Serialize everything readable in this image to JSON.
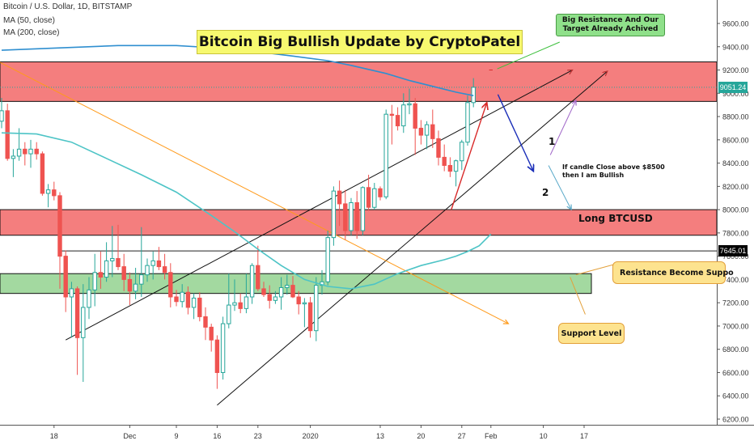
{
  "legend": {
    "symbol_line": "Bitcoin / U.S. Dollar, 1D, BITSTAMP",
    "ma50_line": "MA (50, close)",
    "ma200_line": "MA (200, close)"
  },
  "annotations": {
    "banner_title": "Bitcoin Big Bullish Update by CryptoPatel",
    "resistance_callout": "Big Resistance And Our Target Already Achived",
    "long_label": "Long BTCUSD",
    "resistance_support_callout": "Resistance Become Suppo",
    "support_callout": "Support Level",
    "note_line1": "If candle Close above $8500",
    "note_line2": "then I am Bullish",
    "marker_1": "1",
    "marker_2": "2"
  },
  "price_tags": [
    {
      "label": "9051.24",
      "value": 9051.24,
      "color": "#26a69a"
    },
    {
      "label": "7645.01",
      "value": 7645.01,
      "color": "#000000"
    }
  ],
  "colors": {
    "bull": "#26a69a",
    "bear": "#ef5350",
    "ma50": "#4dc4c6",
    "ma200": "#2f8fd0",
    "resistance_zone": "#f47e7e",
    "support_zone": "#a3d9a0",
    "trend_orange": "#ff9a1a",
    "arrow_red": "#d82a2a",
    "arrow_blue": "#1a2eb8"
  },
  "chart_data": {
    "type": "candlestick",
    "title": "",
    "ylim": [
      6200,
      9700
    ],
    "y_ticks": [
      6200,
      6400,
      6600,
      6800,
      7000,
      7200,
      7400,
      7600,
      7800,
      8000,
      8200,
      8400,
      8600,
      8800,
      9000,
      9200,
      9400,
      9600
    ],
    "y_tick_labels": [
      "6200.00",
      "6400.00",
      "6600.00",
      "6800.00",
      "7000.00",
      "7200.00",
      "7400.00",
      "7600.00",
      "7800.00",
      "8000.00",
      "8200.00",
      "8400.00",
      "8600.00",
      "8800.00",
      "9000.00",
      "9200.00",
      "9400.00",
      "9600.00"
    ],
    "x_ticks": [
      {
        "label": "18",
        "bar": 9
      },
      {
        "label": "Dec",
        "bar": 22
      },
      {
        "label": "9",
        "bar": 30
      },
      {
        "label": "16",
        "bar": 37
      },
      {
        "label": "23",
        "bar": 44
      },
      {
        "label": "2020",
        "bar": 53
      },
      {
        "label": "13",
        "bar": 65
      },
      {
        "label": "20",
        "bar": 72
      },
      {
        "label": "27",
        "bar": 79
      },
      {
        "label": "Feb",
        "bar": 84
      },
      {
        "label": "10",
        "bar": 93
      },
      {
        "label": "17",
        "bar": 100
      }
    ],
    "candles": [
      {
        "o": 8760,
        "h": 8960,
        "l": 8700,
        "c": 8850
      },
      {
        "o": 8850,
        "h": 8910,
        "l": 8420,
        "c": 8440
      },
      {
        "o": 8440,
        "h": 8520,
        "l": 8280,
        "c": 8460
      },
      {
        "o": 8460,
        "h": 8700,
        "l": 8420,
        "c": 8520
      },
      {
        "o": 8520,
        "h": 8580,
        "l": 8380,
        "c": 8480
      },
      {
        "o": 8480,
        "h": 8600,
        "l": 8360,
        "c": 8520
      },
      {
        "o": 8520,
        "h": 8580,
        "l": 8430,
        "c": 8480
      },
      {
        "o": 8480,
        "h": 8500,
        "l": 8120,
        "c": 8140
      },
      {
        "o": 8140,
        "h": 8220,
        "l": 8020,
        "c": 8170
      },
      {
        "o": 8170,
        "h": 8240,
        "l": 8080,
        "c": 8120
      },
      {
        "o": 8120,
        "h": 8150,
        "l": 7320,
        "c": 7600
      },
      {
        "o": 7600,
        "h": 7650,
        "l": 7120,
        "c": 7250
      },
      {
        "o": 7250,
        "h": 7380,
        "l": 6900,
        "c": 7320
      },
      {
        "o": 7320,
        "h": 7340,
        "l": 6580,
        "c": 6900
      },
      {
        "o": 6900,
        "h": 7360,
        "l": 6520,
        "c": 7160
      },
      {
        "o": 7160,
        "h": 7420,
        "l": 7060,
        "c": 7310
      },
      {
        "o": 7310,
        "h": 7620,
        "l": 7170,
        "c": 7460
      },
      {
        "o": 7460,
        "h": 7640,
        "l": 7320,
        "c": 7420
      },
      {
        "o": 7420,
        "h": 7720,
        "l": 7380,
        "c": 7560
      },
      {
        "o": 7560,
        "h": 7860,
        "l": 7420,
        "c": 7580
      },
      {
        "o": 7580,
        "h": 7870,
        "l": 7480,
        "c": 7510
      },
      {
        "o": 7510,
        "h": 7620,
        "l": 7300,
        "c": 7400
      },
      {
        "o": 7400,
        "h": 7460,
        "l": 7180,
        "c": 7300
      },
      {
        "o": 7300,
        "h": 7500,
        "l": 7230,
        "c": 7360
      },
      {
        "o": 7360,
        "h": 7850,
        "l": 7250,
        "c": 7440
      },
      {
        "o": 7440,
        "h": 7580,
        "l": 7380,
        "c": 7520
      },
      {
        "o": 7520,
        "h": 7640,
        "l": 7400,
        "c": 7560
      },
      {
        "o": 7560,
        "h": 7680,
        "l": 7480,
        "c": 7510
      },
      {
        "o": 7510,
        "h": 7620,
        "l": 7400,
        "c": 7460
      },
      {
        "o": 7460,
        "h": 7540,
        "l": 7160,
        "c": 7250
      },
      {
        "o": 7250,
        "h": 7310,
        "l": 7170,
        "c": 7210
      },
      {
        "o": 7210,
        "h": 7360,
        "l": 7160,
        "c": 7290
      },
      {
        "o": 7290,
        "h": 7340,
        "l": 7100,
        "c": 7160
      },
      {
        "o": 7160,
        "h": 7280,
        "l": 7060,
        "c": 7240
      },
      {
        "o": 7240,
        "h": 7290,
        "l": 7040,
        "c": 7080
      },
      {
        "o": 7080,
        "h": 7160,
        "l": 6880,
        "c": 6990
      },
      {
        "o": 6990,
        "h": 7020,
        "l": 6780,
        "c": 6880
      },
      {
        "o": 6880,
        "h": 6920,
        "l": 6460,
        "c": 6600
      },
      {
        "o": 6600,
        "h": 7080,
        "l": 6540,
        "c": 7020
      },
      {
        "o": 7020,
        "h": 7450,
        "l": 6980,
        "c": 7180
      },
      {
        "o": 7180,
        "h": 7400,
        "l": 7130,
        "c": 7200
      },
      {
        "o": 7200,
        "h": 7280,
        "l": 7110,
        "c": 7150
      },
      {
        "o": 7150,
        "h": 7450,
        "l": 7110,
        "c": 7250
      },
      {
        "o": 7250,
        "h": 7540,
        "l": 7190,
        "c": 7520
      },
      {
        "o": 7520,
        "h": 7690,
        "l": 7300,
        "c": 7320
      },
      {
        "o": 7320,
        "h": 7380,
        "l": 7250,
        "c": 7270
      },
      {
        "o": 7270,
        "h": 7350,
        "l": 7150,
        "c": 7220
      },
      {
        "o": 7220,
        "h": 7300,
        "l": 7190,
        "c": 7250
      },
      {
        "o": 7250,
        "h": 7420,
        "l": 7140,
        "c": 7330
      },
      {
        "o": 7330,
        "h": 7440,
        "l": 7270,
        "c": 7350
      },
      {
        "o": 7350,
        "h": 7430,
        "l": 7240,
        "c": 7250
      },
      {
        "o": 7250,
        "h": 7300,
        "l": 7100,
        "c": 7190
      },
      {
        "o": 7190,
        "h": 7240,
        "l": 6990,
        "c": 7200
      },
      {
        "o": 7200,
        "h": 7250,
        "l": 6900,
        "c": 6960
      },
      {
        "o": 6960,
        "h": 7420,
        "l": 6870,
        "c": 7350
      },
      {
        "o": 7350,
        "h": 7480,
        "l": 7270,
        "c": 7380
      },
      {
        "o": 7380,
        "h": 7820,
        "l": 7350,
        "c": 7760
      },
      {
        "o": 7760,
        "h": 8200,
        "l": 7690,
        "c": 8160
      },
      {
        "o": 8160,
        "h": 8250,
        "l": 7860,
        "c": 8050
      },
      {
        "o": 8050,
        "h": 8170,
        "l": 7740,
        "c": 7820
      },
      {
        "o": 7820,
        "h": 8100,
        "l": 7780,
        "c": 8060
      },
      {
        "o": 8060,
        "h": 8160,
        "l": 7750,
        "c": 7820
      },
      {
        "o": 7820,
        "h": 8200,
        "l": 7780,
        "c": 8190
      },
      {
        "o": 8190,
        "h": 8300,
        "l": 7990,
        "c": 8020
      },
      {
        "o": 8020,
        "h": 8230,
        "l": 8000,
        "c": 8180
      },
      {
        "o": 8180,
        "h": 8200,
        "l": 8080,
        "c": 8110
      },
      {
        "o": 8110,
        "h": 8860,
        "l": 8090,
        "c": 8820
      },
      {
        "o": 8820,
        "h": 8900,
        "l": 8560,
        "c": 8810
      },
      {
        "o": 8810,
        "h": 8880,
        "l": 8680,
        "c": 8720
      },
      {
        "o": 8720,
        "h": 9000,
        "l": 8660,
        "c": 8900
      },
      {
        "o": 8900,
        "h": 9040,
        "l": 8820,
        "c": 8910
      },
      {
        "o": 8910,
        "h": 8960,
        "l": 8470,
        "c": 8700
      },
      {
        "o": 8700,
        "h": 8770,
        "l": 8560,
        "c": 8640
      },
      {
        "o": 8640,
        "h": 8760,
        "l": 8520,
        "c": 8730
      },
      {
        "o": 8730,
        "h": 8860,
        "l": 8530,
        "c": 8610
      },
      {
        "o": 8610,
        "h": 8680,
        "l": 8380,
        "c": 8450
      },
      {
        "o": 8450,
        "h": 8560,
        "l": 8330,
        "c": 8380
      },
      {
        "o": 8380,
        "h": 8450,
        "l": 8280,
        "c": 8330
      },
      {
        "o": 8330,
        "h": 8430,
        "l": 8200,
        "c": 8420
      },
      {
        "o": 8420,
        "h": 8600,
        "l": 8340,
        "c": 8580
      },
      {
        "o": 8580,
        "h": 8980,
        "l": 8550,
        "c": 8920
      },
      {
        "o": 8920,
        "h": 9130,
        "l": 8880,
        "c": 9051.24
      }
    ],
    "series": [
      {
        "name": "MA (50, close)",
        "points": [
          [
            0,
            8660
          ],
          [
            6,
            8650
          ],
          [
            12,
            8580
          ],
          [
            18,
            8440
          ],
          [
            24,
            8300
          ],
          [
            30,
            8150
          ],
          [
            36,
            7950
          ],
          [
            40,
            7810
          ],
          [
            44,
            7660
          ],
          [
            48,
            7520
          ],
          [
            52,
            7400
          ],
          [
            56,
            7340
          ],
          [
            60,
            7320
          ],
          [
            64,
            7360
          ],
          [
            68,
            7450
          ],
          [
            72,
            7520
          ],
          [
            76,
            7570
          ],
          [
            78,
            7600
          ],
          [
            80,
            7640
          ],
          [
            82,
            7690
          ],
          [
            84,
            7790
          ]
        ]
      },
      {
        "name": "MA (200, close)",
        "points": [
          [
            0,
            9370
          ],
          [
            10,
            9390
          ],
          [
            20,
            9410
          ],
          [
            30,
            9410
          ],
          [
            40,
            9380
          ],
          [
            50,
            9320
          ],
          [
            56,
            9280
          ],
          [
            60,
            9240
          ],
          [
            66,
            9170
          ],
          [
            70,
            9110
          ],
          [
            74,
            9060
          ],
          [
            78,
            9010
          ],
          [
            81,
            8980
          ]
        ]
      }
    ],
    "zones": [
      {
        "name": "upper-resistance-zone",
        "low": 8930,
        "high": 9270,
        "color": "#f47e7e"
      },
      {
        "name": "long-zone",
        "low": 7780,
        "high": 8000,
        "color": "#f47e7e"
      },
      {
        "name": "support-zone",
        "low": 7280,
        "high": 7450,
        "color": "#a3d9a0"
      }
    ],
    "hlines": [
      {
        "name": "level-7645",
        "value": 7645,
        "from_bar": 10,
        "to_bar": 105
      }
    ],
    "trendlines": [
      {
        "name": "upper-channel-line",
        "x1": 11,
        "y1": 6880,
        "x2": 98,
        "y2": 9200,
        "color": "#111111"
      },
      {
        "name": "lower-channel-line",
        "x1": 37,
        "y1": 6320,
        "x2": 104,
        "y2": 9190,
        "color": "#111111"
      },
      {
        "name": "orange-downtrend",
        "x1": -2,
        "y1": 9310,
        "x2": 87,
        "y2": 7020,
        "color": "#ff9a1a"
      }
    ]
  }
}
